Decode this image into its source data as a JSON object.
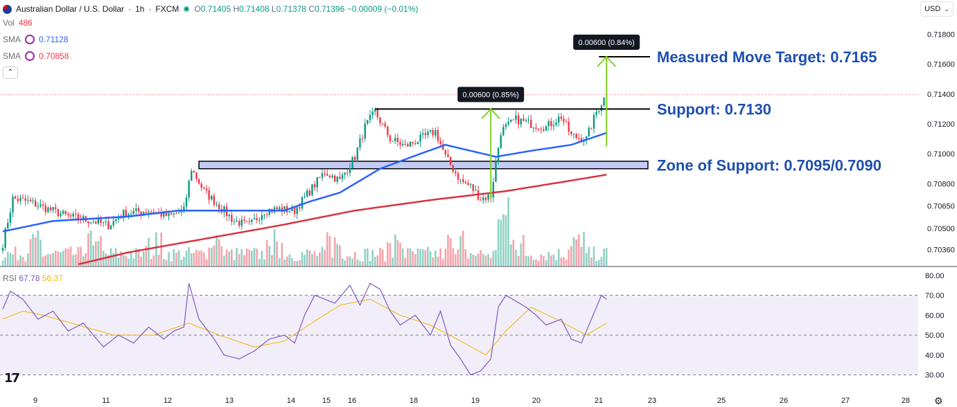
{
  "header": {
    "symbol": "Australian Dollar / U.S. Dollar",
    "interval": "1h",
    "exchange": "FXCM",
    "ohlc": {
      "o_label": "O",
      "o": "0.71405",
      "h_label": "H",
      "h": "0.71408",
      "l_label": "L",
      "l": "0.71378",
      "c_label": "C",
      "c": "0.71396",
      "change": "−0.00009 (−0.01%)"
    },
    "vol_label": "Vol",
    "vol": "486",
    "sma1_label": "SMA",
    "sma1": "0.71128",
    "sma2_label": "SMA",
    "sma2": "0.70858",
    "currency": "USD",
    "rsi_label": "RSI",
    "rsi": "67.78",
    "rsi_ma": "56.37"
  },
  "colors": {
    "up": "#089981",
    "down": "#f23645",
    "sma_fast": "#2962ff",
    "sma_slow": "#d8323f",
    "rsi": "#7e57c2",
    "rsi_ma": "#f5b400",
    "annotation_text": "#1e4fae",
    "arrow": "#7ed321",
    "zone": "#c5cbf7"
  },
  "chart_data": [
    {
      "type": "candlestick",
      "xlabel": "",
      "ylabel": "",
      "ylim": [
        0.7025,
        0.719
      ],
      "y_ticks": [
        "0.71800",
        "0.71600",
        "0.71400",
        "0.71200",
        "0.71000",
        "0.70800",
        "0.70650",
        "0.70500",
        "0.70360"
      ],
      "y_tick_values": [
        0.718,
        0.716,
        0.714,
        0.712,
        0.71,
        0.708,
        0.7065,
        0.705,
        0.7036
      ],
      "x_ticks": [
        "9",
        "11",
        "12",
        "13",
        "14",
        "15",
        "16",
        "18",
        "19",
        "20",
        "21",
        "23",
        "25",
        "26",
        "27",
        "28"
      ],
      "last_price": 0.71396,
      "anchors": [
        [
          0,
          0.704
        ],
        [
          4,
          0.707
        ],
        [
          10,
          0.7068
        ],
        [
          18,
          0.7063
        ],
        [
          26,
          0.7058
        ],
        [
          36,
          0.7055
        ],
        [
          42,
          0.7052
        ],
        [
          48,
          0.706
        ],
        [
          58,
          0.7062
        ],
        [
          66,
          0.7058
        ],
        [
          72,
          0.7062
        ],
        [
          75,
          0.709
        ],
        [
          80,
          0.7075
        ],
        [
          86,
          0.7065
        ],
        [
          92,
          0.7055
        ],
        [
          98,
          0.7052
        ],
        [
          104,
          0.7062
        ],
        [
          110,
          0.7063
        ],
        [
          116,
          0.7062
        ],
        [
          122,
          0.7075
        ],
        [
          128,
          0.7088
        ],
        [
          134,
          0.7082
        ],
        [
          140,
          0.7098
        ],
        [
          144,
          0.7118
        ],
        [
          148,
          0.7128
        ],
        [
          154,
          0.711
        ],
        [
          160,
          0.7105
        ],
        [
          166,
          0.711
        ],
        [
          172,
          0.7115
        ],
        [
          176,
          0.7098
        ],
        [
          182,
          0.7082
        ],
        [
          186,
          0.7078
        ],
        [
          190,
          0.707
        ],
        [
          194,
          0.7072
        ],
        [
          198,
          0.7115
        ],
        [
          204,
          0.7123
        ],
        [
          210,
          0.712
        ],
        [
          216,
          0.7118
        ],
        [
          222,
          0.7125
        ],
        [
          226,
          0.7112
        ],
        [
          232,
          0.711
        ],
        [
          236,
          0.7128
        ],
        [
          240,
          0.714
        ]
      ],
      "sma_fast": {
        "name": "SMA",
        "last": 0.71128,
        "points": [
          [
            0,
            0.7048
          ],
          [
            20,
            0.7055
          ],
          [
            50,
            0.7058
          ],
          [
            70,
            0.7062
          ],
          [
            90,
            0.7062
          ],
          [
            112,
            0.7062
          ],
          [
            122,
            0.7068
          ],
          [
            134,
            0.7074
          ],
          [
            150,
            0.709
          ],
          [
            166,
            0.71
          ],
          [
            176,
            0.7106
          ],
          [
            186,
            0.7102
          ],
          [
            196,
            0.7098
          ],
          [
            210,
            0.7102
          ],
          [
            226,
            0.7106
          ],
          [
            240,
            0.7114
          ]
        ]
      },
      "sma_slow": {
        "name": "SMA",
        "last": 0.70858,
        "points": [
          [
            30,
            0.7026
          ],
          [
            50,
            0.7034
          ],
          [
            80,
            0.7043
          ],
          [
            110,
            0.7052
          ],
          [
            140,
            0.7062
          ],
          [
            170,
            0.7069
          ],
          [
            200,
            0.7075
          ],
          [
            222,
            0.7081
          ],
          [
            240,
            0.7086
          ]
        ]
      },
      "zone_of_support": [
        0.709,
        0.7095
      ],
      "levels": {
        "support": 0.713,
        "target": 0.7165
      },
      "annotations": [
        {
          "text": "Measured Move Target: 0.7165",
          "y": 0.7165
        },
        {
          "text": "Support: 0.7130",
          "y": 0.713
        },
        {
          "text": "Zone of Support: 0.7095/0.7090",
          "y": 0.70925
        }
      ],
      "measured_moves": [
        {
          "label": "0.00600 (0.85%)",
          "from": 0.707,
          "to": 0.713
        },
        {
          "label": "0.00600 (0.84%)",
          "from": 0.7105,
          "to": 0.7165
        }
      ]
    },
    {
      "type": "line",
      "name": "RSI",
      "ylim": [
        25,
        82
      ],
      "y_ticks": [
        "80.00",
        "70.00",
        "60.00",
        "50.00",
        "40.00",
        "30.00"
      ],
      "y_tick_values": [
        80,
        70,
        60,
        50,
        40,
        30
      ],
      "band": [
        30,
        70
      ],
      "rsi_last": 67.78,
      "ma_last": 56.37,
      "rsi_points": [
        [
          0,
          63
        ],
        [
          3,
          72
        ],
        [
          8,
          68
        ],
        [
          14,
          58
        ],
        [
          20,
          62
        ],
        [
          26,
          52
        ],
        [
          32,
          56
        ],
        [
          40,
          44
        ],
        [
          46,
          50
        ],
        [
          52,
          46
        ],
        [
          58,
          54
        ],
        [
          64,
          48
        ],
        [
          68,
          52
        ],
        [
          72,
          54
        ],
        [
          74,
          76
        ],
        [
          78,
          58
        ],
        [
          84,
          48
        ],
        [
          88,
          40
        ],
        [
          94,
          38
        ],
        [
          100,
          42
        ],
        [
          106,
          48
        ],
        [
          112,
          50
        ],
        [
          116,
          46
        ],
        [
          120,
          60
        ],
        [
          124,
          70
        ],
        [
          128,
          68
        ],
        [
          132,
          66
        ],
        [
          136,
          72
        ],
        [
          138,
          75
        ],
        [
          142,
          65
        ],
        [
          146,
          76
        ],
        [
          150,
          73
        ],
        [
          154,
          62
        ],
        [
          158,
          55
        ],
        [
          164,
          60
        ],
        [
          170,
          50
        ],
        [
          174,
          62
        ],
        [
          178,
          45
        ],
        [
          182,
          38
        ],
        [
          186,
          30
        ],
        [
          190,
          32
        ],
        [
          194,
          38
        ],
        [
          197,
          64
        ],
        [
          200,
          70
        ],
        [
          204,
          67
        ],
        [
          208,
          64
        ],
        [
          212,
          60
        ],
        [
          216,
          55
        ],
        [
          222,
          58
        ],
        [
          226,
          48
        ],
        [
          230,
          46
        ],
        [
          234,
          58
        ],
        [
          238,
          70
        ],
        [
          240,
          68
        ]
      ],
      "ma_points": [
        [
          0,
          58
        ],
        [
          8,
          62
        ],
        [
          16,
          60
        ],
        [
          30,
          55
        ],
        [
          44,
          50
        ],
        [
          60,
          50
        ],
        [
          74,
          56
        ],
        [
          86,
          50
        ],
        [
          100,
          44
        ],
        [
          112,
          47
        ],
        [
          124,
          57
        ],
        [
          134,
          65
        ],
        [
          146,
          68
        ],
        [
          158,
          60
        ],
        [
          170,
          55
        ],
        [
          182,
          47
        ],
        [
          192,
          40
        ],
        [
          200,
          52
        ],
        [
          210,
          64
        ],
        [
          220,
          58
        ],
        [
          232,
          50
        ],
        [
          240,
          56
        ]
      ]
    }
  ]
}
